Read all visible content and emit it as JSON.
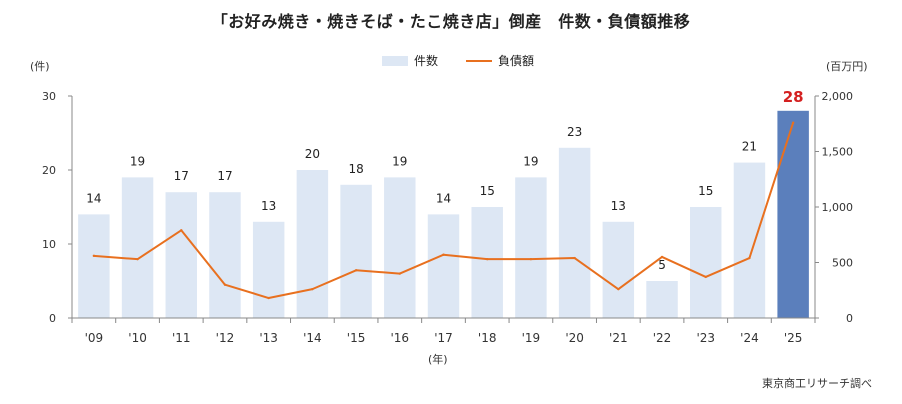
{
  "title": "「お好み焼き・焼きそば・たこ焼き店」倒産　件数・負債額推移",
  "y_left_unit": "(件)",
  "y_right_unit": "(百万円)",
  "x_unit": "(年)",
  "source": "東京商工リサーチ調べ",
  "legend": {
    "bar": "件数",
    "line": "負債額"
  },
  "colors": {
    "bar": "#dde7f4",
    "highlight": "#5b7fbc",
    "line": "#e8701f",
    "highlight_label": "#d42020"
  },
  "chart_data": {
    "type": "bar",
    "categories": [
      "'09",
      "'10",
      "'11",
      "'12",
      "'13",
      "'14",
      "'15",
      "'16",
      "'17",
      "'18",
      "'19",
      "'20",
      "'21",
      "'22",
      "'23",
      "'24",
      "'25"
    ],
    "series": [
      {
        "name": "件数",
        "type": "bar",
        "axis": "left",
        "values": [
          14,
          19,
          17,
          17,
          13,
          20,
          18,
          19,
          14,
          15,
          19,
          23,
          13,
          5,
          15,
          21,
          28
        ]
      },
      {
        "name": "負債額",
        "type": "line",
        "axis": "right",
        "values": [
          560,
          530,
          790,
          300,
          180,
          260,
          430,
          400,
          570,
          530,
          530,
          540,
          260,
          550,
          370,
          540,
          1760
        ]
      }
    ],
    "data_labels": [
      "14",
      "19",
      "17",
      "17",
      "13",
      "20",
      "18",
      "19",
      "14",
      "15",
      "19",
      "23",
      "13",
      "5",
      "15",
      "21",
      "28"
    ],
    "y_left": {
      "range": [
        0,
        30
      ],
      "ticks": [
        0,
        10,
        20,
        30
      ],
      "tick_labels": [
        "0",
        "10",
        "20",
        "30"
      ]
    },
    "y_right": {
      "range": [
        0,
        2000
      ],
      "ticks": [
        0,
        500,
        1000,
        1500,
        2000
      ],
      "tick_labels": [
        "0",
        "500",
        "1,000",
        "1,500",
        "2,000"
      ]
    },
    "highlight_index": 16,
    "grid": false,
    "legend_position": "top-center"
  }
}
